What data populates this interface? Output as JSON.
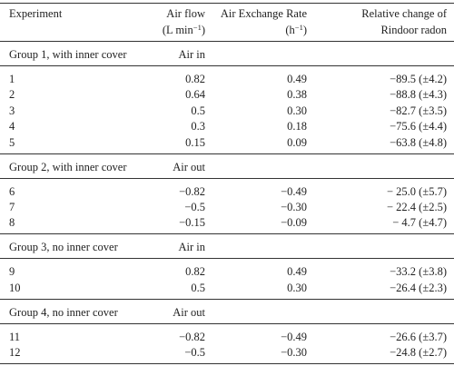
{
  "header": [
    {
      "lines": [
        "Experiment"
      ]
    },
    {
      "lines": [
        "Air flow",
        "(L min"
      ],
      "sup": "−1",
      "close": ")"
    },
    {
      "lines": [
        "Air Exchange Rate",
        "(h"
      ],
      "sup": "−1",
      "close": ")"
    },
    {
      "lines": [
        "Relative change of",
        "Rindoor radon"
      ]
    }
  ],
  "groups": [
    {
      "label": "Group 1, with inner cover",
      "direction": "Air in",
      "rows": [
        [
          "1",
          "0.82",
          "0.49",
          "−89.5 (±4.2)"
        ],
        [
          "2",
          "0.64",
          "0.38",
          "−88.8 (±4.3)"
        ],
        [
          "3",
          "0.5",
          "0.30",
          "−82.7 (±3.5)"
        ],
        [
          "4",
          "0.3",
          "0.18",
          "−75.6 (±4.4)"
        ],
        [
          "5",
          "0.15",
          "0.09",
          "−63.8 (±4.8)"
        ]
      ]
    },
    {
      "label": "Group 2, with inner cover",
      "direction": "Air out",
      "rows": [
        [
          "6",
          "−0.82",
          "−0.49",
          "− 25.0 (±5.7)"
        ],
        [
          "7",
          "−0.5",
          "−0.30",
          "− 22.4 (±2.5)"
        ],
        [
          "8",
          "−0.15",
          "−0.09",
          "− 4.7 (±4.7)"
        ]
      ]
    },
    {
      "label": "Group 3, no inner cover",
      "direction": "Air in",
      "rows": [
        [
          "9",
          "0.82",
          "0.49",
          "−33.2 (±3.8)"
        ],
        [
          "10",
          "0.5",
          "0.30",
          "−26.4 (±2.3)"
        ]
      ]
    },
    {
      "label": "Group 4, no inner cover",
      "direction": "Air out",
      "rows": [
        [
          "11",
          "−0.82",
          "−0.49",
          "−26.6 (±3.7)"
        ],
        [
          "12",
          "−0.5",
          "−0.30",
          "−24.8 (±2.7)"
        ]
      ]
    }
  ]
}
